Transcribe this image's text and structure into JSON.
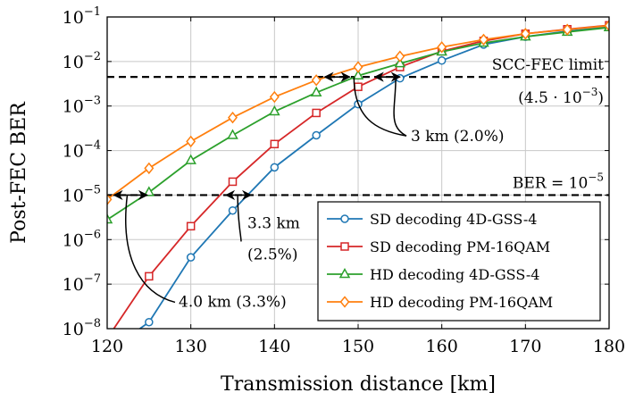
{
  "chart_data": {
    "type": "line",
    "xlabel": "Transmission distance [km]",
    "ylabel": "Post-FEC BER",
    "xlim": [
      120,
      180
    ],
    "ylim": [
      1e-08,
      0.1
    ],
    "yscale": "log",
    "grid": true,
    "legend_position": "bottom-right",
    "x_ticks": [
      120,
      130,
      140,
      150,
      160,
      170,
      180
    ],
    "y_ticks": [
      {
        "value": 1e-08,
        "base": "10",
        "exp": "−8"
      },
      {
        "value": 1e-07,
        "base": "10",
        "exp": "−7"
      },
      {
        "value": 1e-06,
        "base": "10",
        "exp": "−6"
      },
      {
        "value": 1e-05,
        "base": "10",
        "exp": "−5"
      },
      {
        "value": 0.0001,
        "base": "10",
        "exp": "−4"
      },
      {
        "value": 0.001,
        "base": "10",
        "exp": "−3"
      },
      {
        "value": 0.01,
        "base": "10",
        "exp": "−2"
      },
      {
        "value": 0.1,
        "base": "10",
        "exp": "−1"
      }
    ],
    "series": [
      {
        "name": "SD decoding 4D-GSS-4",
        "color": "#1f77b4",
        "marker": "circle",
        "x": [
          120,
          125,
          130,
          135,
          140,
          145,
          150,
          155,
          160,
          165,
          170,
          175,
          180
        ],
        "y": [
          3e-09,
          1.4e-08,
          4e-07,
          4.5e-06,
          4.2e-05,
          0.00022,
          0.0011,
          0.0042,
          0.0105,
          0.024,
          0.036,
          0.048,
          0.06
        ]
      },
      {
        "name": "SD decoding PM-16QAM",
        "color": "#d62728",
        "marker": "square",
        "x": [
          120,
          125,
          130,
          135,
          140,
          145,
          150,
          155,
          160,
          165,
          170,
          175,
          180
        ],
        "y": [
          6e-09,
          1.5e-07,
          2e-06,
          2e-05,
          0.00014,
          0.0007,
          0.0027,
          0.0075,
          0.017,
          0.029,
          0.042,
          0.053,
          0.065
        ]
      },
      {
        "name": "HD decoding 4D-GSS-4",
        "color": "#2ca02c",
        "marker": "triangle",
        "x": [
          120,
          125,
          130,
          135,
          140,
          145,
          150,
          155,
          160,
          165,
          170,
          175,
          180
        ],
        "y": [
          2.8e-06,
          1.15e-05,
          6e-05,
          0.00022,
          0.00075,
          0.002,
          0.0048,
          0.009,
          0.0165,
          0.026,
          0.036,
          0.046,
          0.058
        ]
      },
      {
        "name": "HD decoding PM-16QAM",
        "color": "#ff7f0e",
        "marker": "diamond",
        "x": [
          120,
          125,
          130,
          135,
          140,
          145,
          150,
          155,
          160,
          165,
          170,
          175,
          180
        ],
        "y": [
          8e-06,
          4e-05,
          0.00016,
          0.00055,
          0.0016,
          0.0038,
          0.0075,
          0.013,
          0.021,
          0.031,
          0.042,
          0.052,
          0.064
        ]
      }
    ],
    "reference_lines": [
      {
        "y": 0.0045,
        "label": "SCC-FEC limit",
        "sublabel": "(4.5 · 10",
        "sublabel_exp": "−3",
        "sublabel_end": ")"
      },
      {
        "y": 1e-05,
        "label": "BER = 10",
        "label_exp": "−5"
      }
    ],
    "annotations": [
      {
        "text": "3 km (2.0%)",
        "x1": 146,
        "x2": 149,
        "x3": 152,
        "x4": 155,
        "y": 0.0045
      },
      {
        "text": "3.3 km",
        "text2": "(2.5%)",
        "x1": 134.2,
        "x2": 137.2,
        "y": 1e-05
      },
      {
        "text": "4.0 km (3.3%)",
        "x1": 120.8,
        "x2": 124.8,
        "y": 1e-05
      }
    ]
  }
}
